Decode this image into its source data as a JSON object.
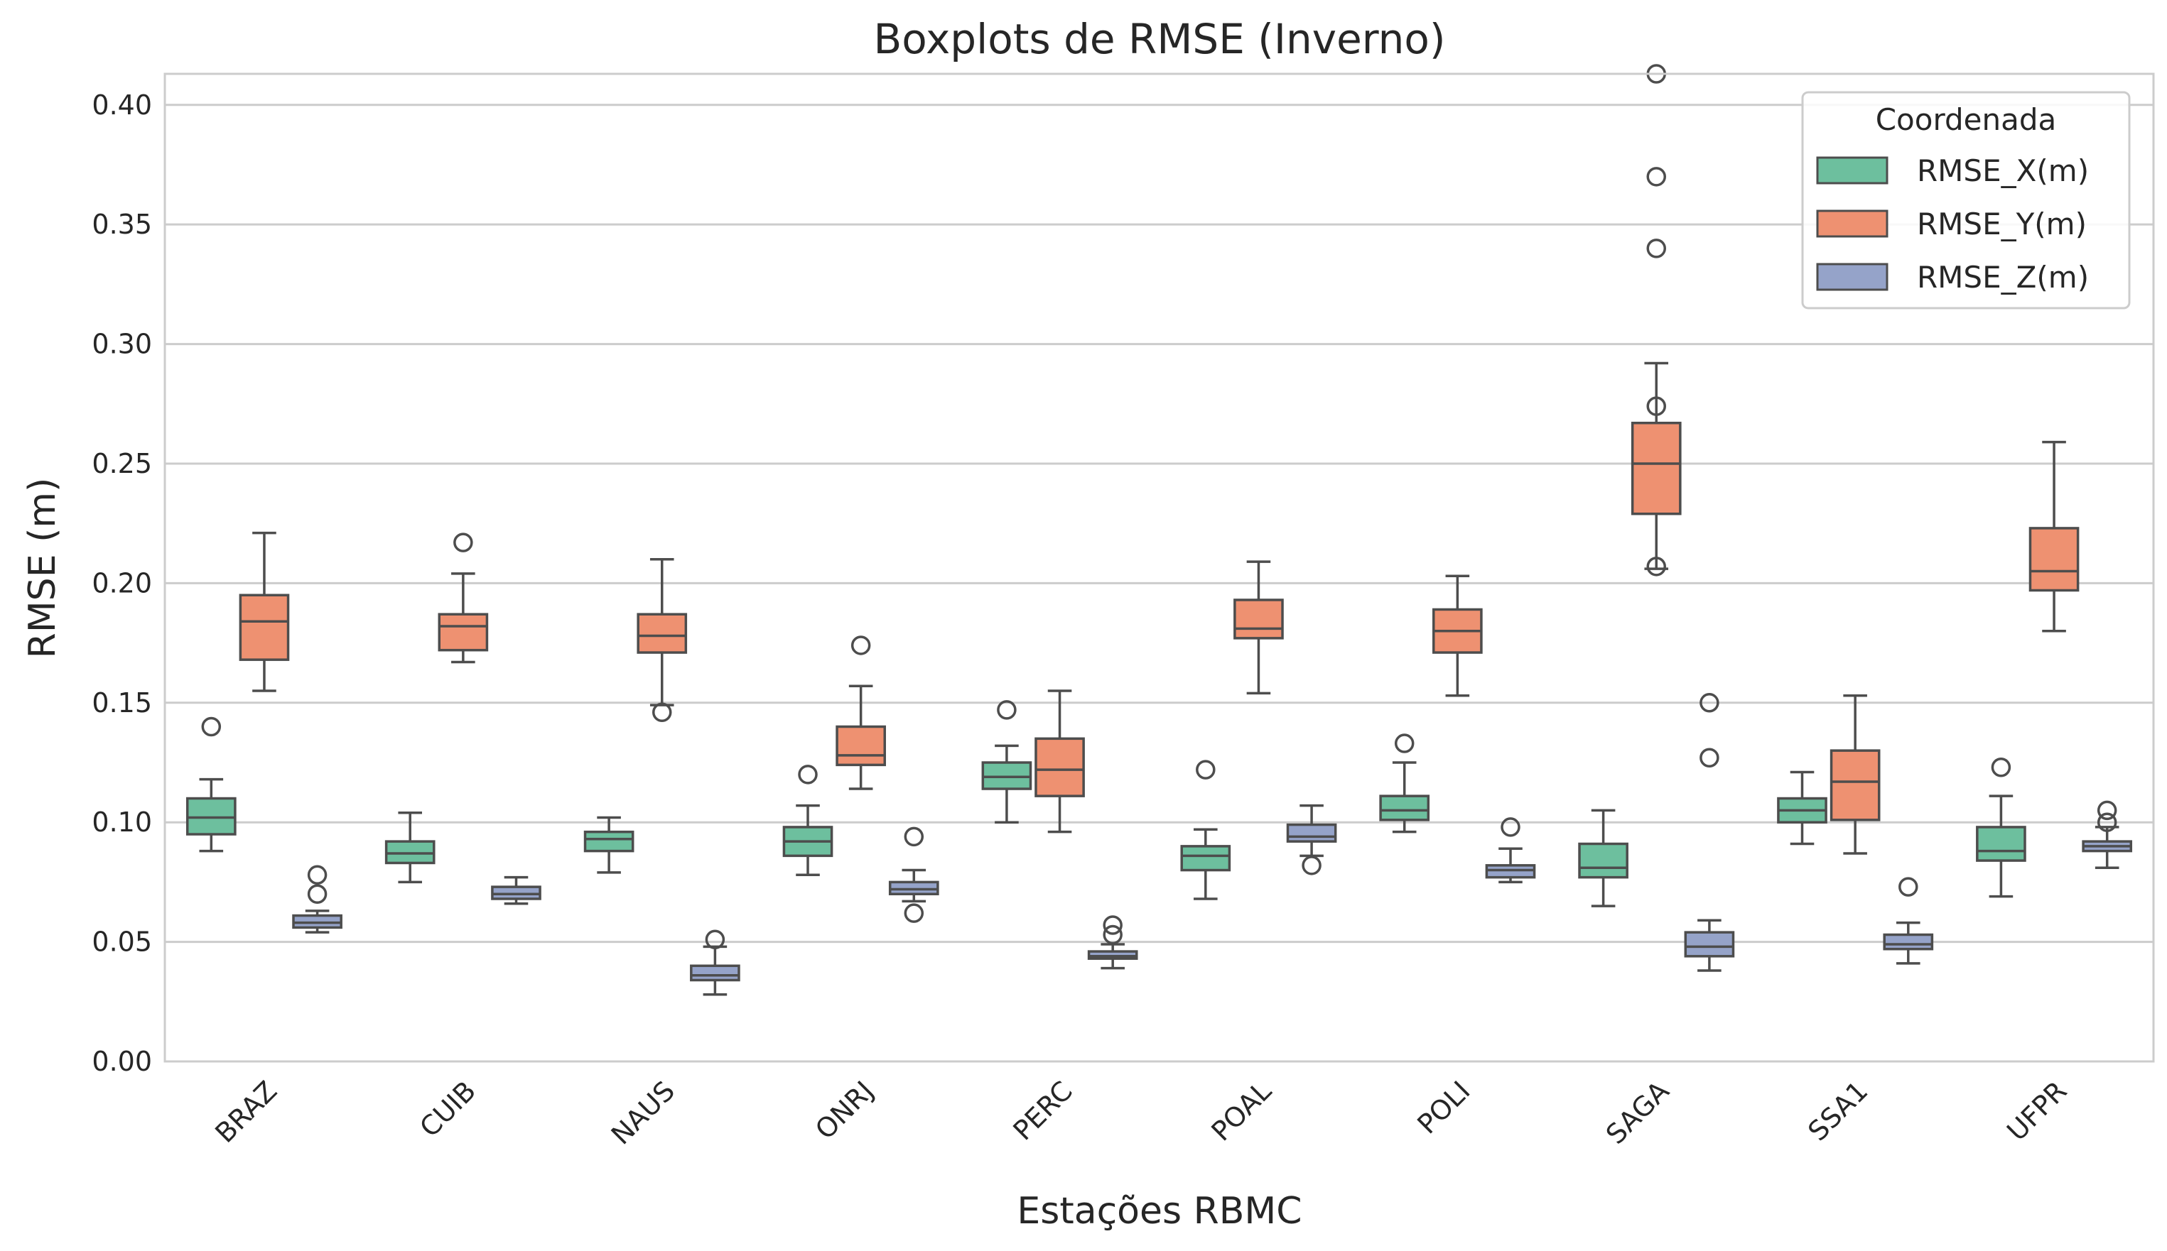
{
  "chart_data": {
    "type": "boxplot",
    "title": "Boxplots de RMSE (Inverno)",
    "xlabel": "Estações RBMC",
    "ylabel": "RMSE (m)",
    "ylim": [
      0,
      0.413
    ],
    "yticks": [
      "0.00",
      "0.05",
      "0.10",
      "0.15",
      "0.20",
      "0.25",
      "0.30",
      "0.35",
      "0.40"
    ],
    "ytick_values": [
      0,
      0.05,
      0.1,
      0.15,
      0.2,
      0.25,
      0.3,
      0.35,
      0.4
    ],
    "grid": true,
    "categories": [
      "BRAZ",
      "CUIB",
      "NAUS",
      "ONRJ",
      "PERC",
      "POAL",
      "POLI",
      "SAGA",
      "SSA1",
      "UFPR"
    ],
    "legend": {
      "title": "Coordenada",
      "position": "top-right"
    },
    "series": [
      {
        "name": "RMSE_X(m)",
        "color": "#6dbf9e",
        "boxes": [
          {
            "whislo": 0.088,
            "q1": 0.095,
            "med": 0.102,
            "q3": 0.11,
            "whishi": 0.118,
            "fliers": [
              0.14
            ]
          },
          {
            "whislo": 0.075,
            "q1": 0.083,
            "med": 0.087,
            "q3": 0.092,
            "whishi": 0.104,
            "fliers": []
          },
          {
            "whislo": 0.079,
            "q1": 0.088,
            "med": 0.093,
            "q3": 0.096,
            "whishi": 0.102,
            "fliers": []
          },
          {
            "whislo": 0.078,
            "q1": 0.086,
            "med": 0.092,
            "q3": 0.098,
            "whishi": 0.107,
            "fliers": [
              0.12
            ]
          },
          {
            "whislo": 0.1,
            "q1": 0.114,
            "med": 0.119,
            "q3": 0.125,
            "whishi": 0.132,
            "fliers": [
              0.147
            ]
          },
          {
            "whislo": 0.068,
            "q1": 0.08,
            "med": 0.086,
            "q3": 0.09,
            "whishi": 0.097,
            "fliers": [
              0.122
            ]
          },
          {
            "whislo": 0.096,
            "q1": 0.101,
            "med": 0.105,
            "q3": 0.111,
            "whishi": 0.125,
            "fliers": [
              0.133
            ]
          },
          {
            "whislo": 0.065,
            "q1": 0.077,
            "med": 0.081,
            "q3": 0.091,
            "whishi": 0.105,
            "fliers": []
          },
          {
            "whislo": 0.091,
            "q1": 0.1,
            "med": 0.105,
            "q3": 0.11,
            "whishi": 0.121,
            "fliers": []
          },
          {
            "whislo": 0.069,
            "q1": 0.084,
            "med": 0.088,
            "q3": 0.098,
            "whishi": 0.111,
            "fliers": [
              0.123
            ]
          }
        ]
      },
      {
        "name": "RMSE_Y(m)",
        "color": "#ee9171",
        "boxes": [
          {
            "whislo": 0.155,
            "q1": 0.168,
            "med": 0.184,
            "q3": 0.195,
            "whishi": 0.221,
            "fliers": []
          },
          {
            "whislo": 0.167,
            "q1": 0.172,
            "med": 0.182,
            "q3": 0.187,
            "whishi": 0.204,
            "fliers": [
              0.217
            ]
          },
          {
            "whislo": 0.149,
            "q1": 0.171,
            "med": 0.178,
            "q3": 0.187,
            "whishi": 0.21,
            "fliers": [
              0.146
            ]
          },
          {
            "whislo": 0.114,
            "q1": 0.124,
            "med": 0.128,
            "q3": 0.14,
            "whishi": 0.157,
            "fliers": [
              0.174
            ]
          },
          {
            "whislo": 0.096,
            "q1": 0.111,
            "med": 0.122,
            "q3": 0.135,
            "whishi": 0.155,
            "fliers": []
          },
          {
            "whislo": 0.154,
            "q1": 0.177,
            "med": 0.181,
            "q3": 0.193,
            "whishi": 0.209,
            "fliers": []
          },
          {
            "whislo": 0.153,
            "q1": 0.171,
            "med": 0.18,
            "q3": 0.189,
            "whishi": 0.203,
            "fliers": []
          },
          {
            "whislo": 0.206,
            "q1": 0.229,
            "med": 0.25,
            "q3": 0.267,
            "whishi": 0.292,
            "fliers": [
              0.207,
              0.274,
              0.34,
              0.37,
              0.413
            ]
          },
          {
            "whislo": 0.087,
            "q1": 0.101,
            "med": 0.117,
            "q3": 0.13,
            "whishi": 0.153,
            "fliers": []
          },
          {
            "whislo": 0.18,
            "q1": 0.197,
            "med": 0.205,
            "q3": 0.223,
            "whishi": 0.259,
            "fliers": []
          }
        ]
      },
      {
        "name": "RMSE_Z(m)",
        "color": "#95a3c9",
        "boxes": [
          {
            "whislo": 0.054,
            "q1": 0.056,
            "med": 0.058,
            "q3": 0.061,
            "whishi": 0.063,
            "fliers": [
              0.07,
              0.078
            ]
          },
          {
            "whislo": 0.066,
            "q1": 0.068,
            "med": 0.07,
            "q3": 0.073,
            "whishi": 0.077,
            "fliers": []
          },
          {
            "whislo": 0.028,
            "q1": 0.034,
            "med": 0.036,
            "q3": 0.04,
            "whishi": 0.048,
            "fliers": [
              0.051
            ]
          },
          {
            "whislo": 0.067,
            "q1": 0.07,
            "med": 0.072,
            "q3": 0.075,
            "whishi": 0.08,
            "fliers": [
              0.062,
              0.094
            ]
          },
          {
            "whislo": 0.039,
            "q1": 0.043,
            "med": 0.044,
            "q3": 0.046,
            "whishi": 0.049,
            "fliers": [
              0.053,
              0.057
            ]
          },
          {
            "whislo": 0.086,
            "q1": 0.092,
            "med": 0.094,
            "q3": 0.099,
            "whishi": 0.107,
            "fliers": [
              0.082
            ]
          },
          {
            "whislo": 0.075,
            "q1": 0.077,
            "med": 0.08,
            "q3": 0.082,
            "whishi": 0.089,
            "fliers": [
              0.098
            ]
          },
          {
            "whislo": 0.038,
            "q1": 0.044,
            "med": 0.048,
            "q3": 0.054,
            "whishi": 0.059,
            "fliers": [
              0.127,
              0.15
            ]
          },
          {
            "whislo": 0.041,
            "q1": 0.047,
            "med": 0.049,
            "q3": 0.053,
            "whishi": 0.058,
            "fliers": [
              0.073
            ]
          },
          {
            "whislo": 0.081,
            "q1": 0.088,
            "med": 0.09,
            "q3": 0.092,
            "whishi": 0.098,
            "fliers": [
              0.1,
              0.105
            ]
          }
        ]
      }
    ]
  }
}
